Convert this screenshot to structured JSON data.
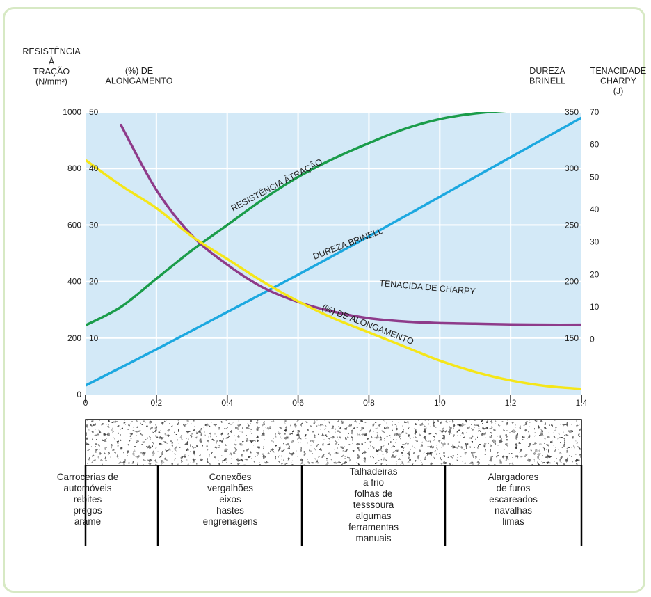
{
  "chart_data": {
    "type": "line",
    "xlabel": "",
    "x_ticks": [
      "0",
      "0.2",
      "0.4",
      "0.6",
      "0.8",
      "1.0",
      "1.2",
      "1.4"
    ],
    "xlim": [
      0,
      1.4
    ],
    "axes": {
      "left_outer": {
        "title_lines": [
          "RESISTÊNCIA",
          "À",
          "TRAÇÃO",
          "(N/mm²)"
        ],
        "ticks": [
          "1000",
          "800",
          "600",
          "400",
          "200",
          "0"
        ],
        "ylim": [
          0,
          1000
        ]
      },
      "left_inner": {
        "title_lines": [
          "(%) DE",
          "ALONGAMENTO"
        ],
        "ticks": [
          "50",
          "40",
          "30",
          "20",
          "10"
        ],
        "ylim": [
          0,
          50
        ]
      },
      "right_inner": {
        "title_lines": [
          "DUREZA",
          "BRINELL"
        ],
        "ticks": [
          "350",
          "300",
          "250",
          "200",
          "150"
        ],
        "ylim": [
          100,
          350
        ]
      },
      "right_outer": {
        "title_lines": [
          "TENACIDADE",
          "CHARPY",
          "(J)"
        ],
        "ticks": [
          "70",
          "60",
          "50",
          "40",
          "30",
          "20",
          "10",
          "0"
        ],
        "ylim": [
          -17,
          70
        ]
      }
    },
    "series": [
      {
        "name": "RESISTÊNCIA ÀTRAÇÃO",
        "color": "#1a9c4a",
        "axis": "left_outer",
        "x": [
          0,
          0.1,
          0.2,
          0.3,
          0.4,
          0.5,
          0.6,
          0.7,
          0.8,
          0.9,
          1.0,
          1.1,
          1.2,
          1.3
        ],
        "y": [
          245,
          310,
          410,
          510,
          600,
          690,
          770,
          835,
          890,
          940,
          975,
          995,
          1005,
          1005
        ]
      },
      {
        "name": "DUREZA BRINELL",
        "color": "#1ca8e0",
        "axis": "right_inner",
        "x": [
          0,
          0.2,
          0.4,
          0.6,
          0.8,
          1.0,
          1.2,
          1.4
        ],
        "y": [
          108,
          140,
          173,
          206,
          240,
          275,
          310,
          345
        ]
      },
      {
        "name": "TENACIDA DE CHARPY",
        "color": "#8e3b8a",
        "axis": "right_outer",
        "x": [
          0.1,
          0.2,
          0.3,
          0.4,
          0.5,
          0.6,
          0.7,
          0.8,
          0.9,
          1.0,
          1.1,
          1.2,
          1.3,
          1.4
        ],
        "y": [
          66,
          46,
          32,
          23,
          16,
          11.5,
          8.5,
          6.5,
          5.5,
          5,
          4.8,
          4.6,
          4.5,
          4.5
        ]
      },
      {
        "name": "(%) DE ALONGAMENTO",
        "color": "#f5e619",
        "axis": "left_inner",
        "x": [
          0,
          0.1,
          0.2,
          0.3,
          0.4,
          0.5,
          0.6,
          0.7,
          0.8,
          0.9,
          1.0,
          1.1,
          1.2,
          1.3,
          1.4
        ],
        "y": [
          41.5,
          37,
          33,
          28,
          24,
          20,
          16.5,
          13.5,
          11,
          8.5,
          6,
          4,
          2.5,
          1.5,
          1
        ]
      }
    ],
    "grid": true,
    "background": "#d3e9f7",
    "applications": [
      {
        "lines": [
          "Carrocerias de",
          "automóveis",
          "rebites",
          "pregos",
          "arame"
        ]
      },
      {
        "lines": [
          "Conexões",
          "vergalhões",
          "eixos",
          "hastes",
          "engrenagens"
        ]
      },
      {
        "lines": [
          "Talhadeiras",
          "a frio",
          "folhas de",
          "tesssoura",
          "algumas",
          "ferramentas",
          "manuais"
        ]
      },
      {
        "lines": [
          "Alargadores",
          "de furos",
          "escareados",
          "navalhas",
          "limas"
        ]
      }
    ]
  }
}
